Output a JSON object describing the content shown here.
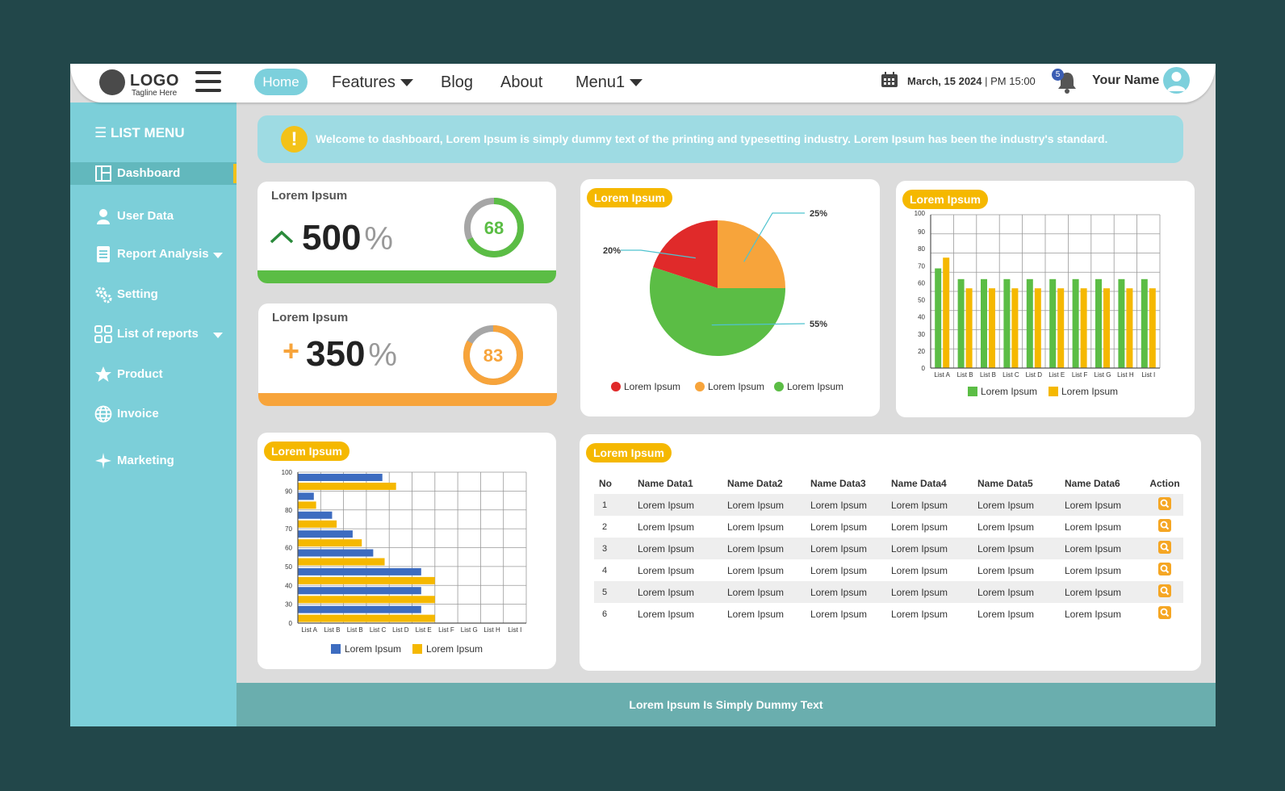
{
  "header": {
    "logo": "LOGO",
    "tagline": "Tagline Here",
    "nav": {
      "home": "Home",
      "features": "Features",
      "blog": "Blog",
      "about": "About",
      "menu1": "Menu1"
    },
    "date": "March, 15 2024",
    "time": "| PM 15:00",
    "notification_count": "5",
    "user_name": "Your Name"
  },
  "sidebar": {
    "title": "LIST MENU",
    "items": [
      {
        "label": "Dashboard",
        "icon": "dashboard-icon",
        "active": true
      },
      {
        "label": "User Data",
        "icon": "user-icon"
      },
      {
        "label": "Report Analysis",
        "icon": "report-icon",
        "has_submenu": true
      },
      {
        "label": "Setting",
        "icon": "gears-icon"
      },
      {
        "label": "List of reports",
        "icon": "grid-icon",
        "has_submenu": true
      },
      {
        "label": "Product",
        "icon": "star-icon"
      },
      {
        "label": "Invoice",
        "icon": "globe-icon"
      },
      {
        "label": "Marketing",
        "icon": "plane-icon"
      }
    ]
  },
  "banner": {
    "icon": "warning-icon",
    "text": "Welcome to dashboard, Lorem Ipsum is simply dummy text of the printing and typesetting industry. Lorem Ipsum has been the industry's standard."
  },
  "kpis": [
    {
      "label": "Lorem Ipsum",
      "prefix": "^",
      "value": "500",
      "unit": "%",
      "ring_value": "68",
      "ring_fraction": 0.68,
      "color": "#5bbd45"
    },
    {
      "label": "Lorem Ipsum",
      "prefix": "+",
      "value": "350",
      "unit": "%",
      "ring_value": "83",
      "ring_fraction": 0.83,
      "color": "#f7a43b"
    }
  ],
  "colors": {
    "sidebar": "#7ccfd9",
    "accent_yellow": "#f5b800",
    "green": "#5bbd45",
    "orange": "#f7a43b",
    "red": "#e02a2a",
    "blue": "#3d6cc0",
    "footer": "#6aaeae"
  },
  "pie_card": {
    "title": "Lorem Ipsum"
  },
  "bar_card": {
    "title": "Lorem Ipsum"
  },
  "hbar_card": {
    "title": "Lorem Ipsum"
  },
  "table_card": {
    "title": "Lorem Ipsum",
    "columns": [
      "No",
      "Name Data1",
      "Name Data2",
      "Name Data3",
      "Name Data4",
      "Name Data5",
      "Name Data6",
      "Action"
    ],
    "rows": [
      [
        "1",
        "Lorem Ipsum",
        "Lorem Ipsum",
        "Lorem Ipsum",
        "Lorem Ipsum",
        "Lorem Ipsum",
        "Lorem Ipsum"
      ],
      [
        "2",
        "Lorem Ipsum",
        "Lorem Ipsum",
        "Lorem Ipsum",
        "Lorem Ipsum",
        "Lorem Ipsum",
        "Lorem Ipsum"
      ],
      [
        "3",
        "Lorem Ipsum",
        "Lorem Ipsum",
        "Lorem Ipsum",
        "Lorem Ipsum",
        "Lorem Ipsum",
        "Lorem Ipsum"
      ],
      [
        "4",
        "Lorem Ipsum",
        "Lorem Ipsum",
        "Lorem Ipsum",
        "Lorem Ipsum",
        "Lorem Ipsum",
        "Lorem Ipsum"
      ],
      [
        "5",
        "Lorem Ipsum",
        "Lorem Ipsum",
        "Lorem Ipsum",
        "Lorem Ipsum",
        "Lorem Ipsum",
        "Lorem Ipsum"
      ],
      [
        "6",
        "Lorem Ipsum",
        "Lorem Ipsum",
        "Lorem Ipsum",
        "Lorem Ipsum",
        "Lorem Ipsum",
        "Lorem Ipsum"
      ]
    ],
    "action_icon": "search-icon"
  },
  "footer": {
    "text": "Lorem Ipsum Is Simply Dummy Text"
  },
  "chart_data": [
    {
      "type": "pie",
      "categories": [
        "Lorem Ipsum",
        "Lorem Ipsum",
        "Lorem Ipsum"
      ],
      "values": [
        20,
        25,
        55
      ],
      "labels": [
        "20%",
        "25%",
        "55%"
      ],
      "colors": [
        "#e02a2a",
        "#f7a43b",
        "#5bbd45"
      ],
      "legend": "bottom"
    },
    {
      "type": "bar",
      "categories": [
        "List A",
        "List B",
        "List B",
        "List C",
        "List D",
        "List E",
        "List F",
        "List G",
        "List H",
        "List I"
      ],
      "series": [
        {
          "name": "Lorem Ipsum",
          "values": [
            65,
            58,
            58,
            58,
            58,
            58,
            58,
            58,
            58,
            58
          ],
          "color": "#5bbd45"
        },
        {
          "name": "Lorem Ipsum",
          "values": [
            72,
            52,
            52,
            52,
            52,
            52,
            52,
            52,
            52,
            52
          ],
          "color": "#f5b800"
        }
      ],
      "yticks": [
        "0",
        "20",
        "30",
        "40",
        "50",
        "60",
        "70",
        "80",
        "90",
        "100"
      ],
      "ylim": [
        0,
        100
      ],
      "grid": true,
      "legend": "bottom"
    },
    {
      "type": "bar",
      "orientation": "horizontal",
      "categories": [
        "100",
        "90",
        "80",
        "70",
        "60",
        "50",
        "40",
        "30"
      ],
      "series": [
        {
          "name": "Lorem Ipsum",
          "values": [
            37,
            7,
            15,
            24,
            33,
            54,
            54,
            54
          ],
          "color": "#3d6cc0"
        },
        {
          "name": "Lorem Ipsum",
          "values": [
            43,
            8,
            17,
            28,
            38,
            60,
            60,
            60
          ],
          "color": "#f5b800"
        }
      ],
      "yticks": [
        "100",
        "90",
        "80",
        "70",
        "60",
        "50",
        "40",
        "30",
        "0"
      ],
      "xticks": [
        "List A",
        "List B",
        "List B",
        "List C",
        "List D",
        "List E",
        "List F",
        "List G",
        "List H",
        "List I"
      ],
      "xlim": [
        0,
        100
      ],
      "grid": true,
      "legend": "bottom"
    }
  ]
}
